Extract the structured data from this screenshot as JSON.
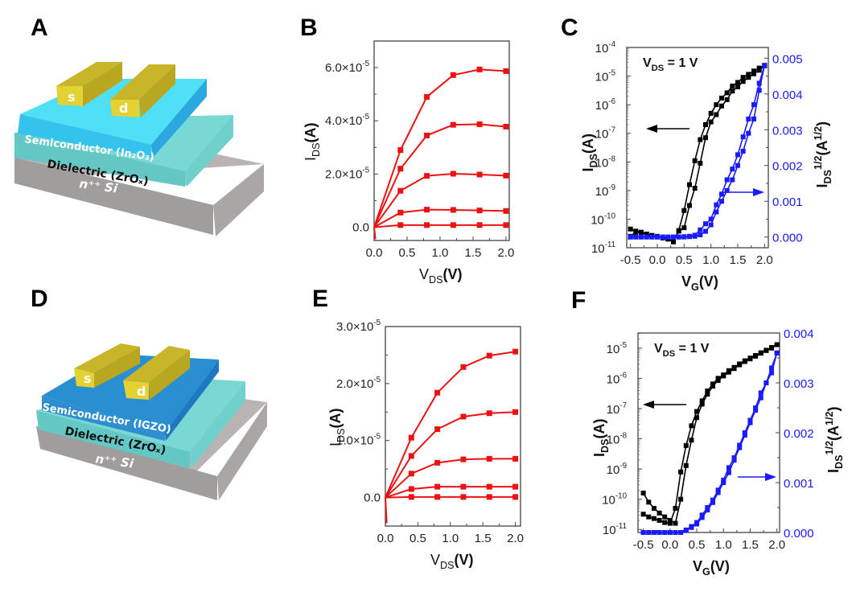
{
  "panels": {
    "A": "A",
    "B": "B",
    "C": "C",
    "D": "D",
    "E": "E",
    "F": "F"
  },
  "devices": [
    {
      "id": "A",
      "source": "s",
      "drain": "d",
      "semiconductor": "Semiconductor (In₂O₃)",
      "dielectric": "Dielectric (ZrOₓ)",
      "substrate": "n⁺⁺ Si",
      "colors": {
        "semiconductor_top": "#4fe0f7",
        "semiconductor_side": "#2aa8e0",
        "dielectric_top": "#7ad8d4",
        "dielectric_side": "#5cc1bf",
        "substrate_top": "#b9b4b3",
        "substrate_side": "#9a9695",
        "electrode_top": "#c9b52a",
        "electrode_side": "#e4d233"
      }
    },
    {
      "id": "D",
      "source": "s",
      "drain": "d",
      "semiconductor": "Semiconductor (IGZO)",
      "dielectric": "Dielectric (ZrOₓ)",
      "substrate": "n⁺⁺ Si",
      "colors": {
        "semiconductor_top": "#2a8fd0",
        "semiconductor_side": "#1f78c0",
        "dielectric_top": "#7ad8d4",
        "dielectric_side": "#5cc1bf",
        "substrate_top": "#b9b4b3",
        "substrate_side": "#9a9695",
        "electrode_top": "#c9b52a",
        "electrode_side": "#e4d233"
      }
    }
  ],
  "chart_data": [
    {
      "id": "B",
      "type": "line",
      "title": "",
      "xlabel": "V_DS(V)",
      "ylabel": "I_DS(A)",
      "xlim": [
        0,
        2.05
      ],
      "ylim": [
        -5e-06,
        7e-05
      ],
      "xticks": [
        0.0,
        0.5,
        1.0,
        1.5,
        2.0
      ],
      "xtick_labels": [
        "0.0",
        "0.5",
        "1.0",
        "1.5",
        "2.0"
      ],
      "yticks": [
        0,
        2e-05,
        4e-05,
        6e-05
      ],
      "ytick_labels": [
        "0.0",
        "2.0×10⁻⁵",
        "4.0×10⁻⁵",
        "6.0×10⁻⁵"
      ],
      "color": "#ee1111",
      "x": [
        0.0,
        0.4,
        0.8,
        1.2,
        1.6,
        2.0
      ],
      "series": [
        {
          "name": "curve-1",
          "values": [
            0,
            2.9e-05,
            4.9e-05,
            5.72e-05,
            5.93e-05,
            5.87e-05
          ]
        },
        {
          "name": "curve-2",
          "values": [
            0,
            2.2e-05,
            3.45e-05,
            3.85e-05,
            3.87e-05,
            3.78e-05
          ]
        },
        {
          "name": "curve-3",
          "values": [
            0,
            1.37e-05,
            1.93e-05,
            2.01e-05,
            1.98e-05,
            1.94e-05
          ]
        },
        {
          "name": "curve-4",
          "values": [
            0,
            5.5e-06,
            6.6e-06,
            6.5e-06,
            6.3e-06,
            6.1e-06
          ]
        },
        {
          "name": "curve-5",
          "values": [
            0,
            8e-07,
            8e-07,
            8e-07,
            8e-07,
            8e-07
          ]
        }
      ]
    },
    {
      "id": "C",
      "type": "line",
      "title": "",
      "annotation": "V_DS = 1 V",
      "xlabel": "V_G(V)",
      "ylabel_left": "I_DS(A)",
      "ylabel_right": "I_DS^1/2(A^1/2)",
      "xlim": [
        -0.57,
        2.07
      ],
      "ylim_left_log10": [
        -11,
        -4
      ],
      "ylim_right": [
        -0.0003,
        0.0053
      ],
      "xticks": [
        -0.5,
        0.0,
        0.5,
        1.0,
        1.5,
        2.0
      ],
      "xtick_labels": [
        "-0.5",
        "0.0",
        "0.5",
        "1.0",
        "1.5",
        "2.0"
      ],
      "yticks_left_exp": [
        -11,
        -10,
        -9,
        -8,
        -7,
        -6,
        -5,
        -4
      ],
      "yticks_right": [
        0.0,
        0.001,
        0.002,
        0.003,
        0.004,
        0.005
      ],
      "ytick_labels_right": [
        "0.000",
        "0.001",
        "0.002",
        "0.003",
        "0.004",
        "0.005"
      ],
      "left_color": "#000000",
      "right_color": "#1a1aff",
      "x": [
        -0.5,
        -0.4,
        -0.3,
        -0.2,
        -0.1,
        0.0,
        0.1,
        0.2,
        0.3,
        0.4,
        0.5,
        0.6,
        0.7,
        0.8,
        0.9,
        1.0,
        1.1,
        1.2,
        1.3,
        1.4,
        1.5,
        1.6,
        1.7,
        1.8,
        1.9,
        2.0
      ],
      "series": [
        {
          "name": "log-forward",
          "axis": "left",
          "values": [
            2.5e-11,
            3.5e-11,
            3.3e-11,
            3e-11,
            2.6e-11,
            2.4e-11,
            2.2e-11,
            2e-11,
            1.6e-11,
            4e-11,
            2e-10,
            1.6e-09,
            1.1e-08,
            6e-08,
            2e-07,
            5e-07,
            1e-06,
            1.7e-06,
            2.6e-06,
            4.5e-06,
            6e-06,
            9e-06,
            1.15e-05,
            1.5e-05,
            1.9e-05,
            2.3e-05
          ]
        },
        {
          "name": "log-reverse",
          "axis": "left",
          "values": [
            4.5e-11,
            3.8e-11,
            3.5e-11,
            3e-11,
            2.7e-11,
            2.5e-11,
            2.3e-11,
            2.1e-11,
            1.7e-11,
            3.8e-11,
            5e-11,
            3e-10,
            1.2e-09,
            9e-09,
            7e-08,
            2.5e-07,
            4.5e-07,
            9e-07,
            1.5e-06,
            3e-06,
            4.2e-06,
            6.5e-06,
            9e-06,
            1.2e-05,
            1.6e-05,
            2.3e-05
          ]
        },
        {
          "name": "sqrt-forward",
          "axis": "right",
          "values": [
            0,
            0,
            0,
            0,
            0,
            0,
            0,
            0,
            0,
            0,
            1e-05,
            2e-05,
            5e-05,
            0.0002,
            0.00037,
            0.0005,
            0.0009,
            0.0012,
            0.0016,
            0.0019,
            0.0023,
            0.0028,
            0.0033,
            0.0037,
            0.0043,
            0.0048
          ]
        },
        {
          "name": "sqrt-reverse",
          "axis": "right",
          "values": [
            0,
            0,
            0,
            0,
            0,
            0,
            0,
            0,
            0,
            0,
            0,
            1e-05,
            2e-05,
            6e-05,
            0.00016,
            0.00034,
            0.0007,
            0.001,
            0.0013,
            0.0016,
            0.002,
            0.0024,
            0.0029,
            0.0033,
            0.0041,
            0.0048
          ]
        }
      ]
    },
    {
      "id": "E",
      "type": "line",
      "title": "",
      "xlabel": "V_DS(V)",
      "ylabel": "I_DS(A)",
      "xlim": [
        0,
        2.08
      ],
      "ylim": [
        -5e-06,
        3e-05
      ],
      "xticks": [
        0.0,
        0.5,
        1.0,
        1.5,
        2.0
      ],
      "xtick_labels": [
        "0.0",
        "0.5",
        "1.0",
        "1.5",
        "2.0"
      ],
      "yticks": [
        0,
        1e-05,
        2e-05,
        3e-05
      ],
      "ytick_labels": [
        "0.0",
        "1.0×10⁻⁵",
        "2.0×10⁻⁵",
        "3.0×10⁻⁵"
      ],
      "color": "#ee1111",
      "x": [
        0.0,
        0.4,
        0.8,
        1.2,
        1.6,
        2.0
      ],
      "series": [
        {
          "name": "curve-1",
          "values": [
            0,
            1.05e-05,
            1.84e-05,
            2.29e-05,
            2.49e-05,
            2.56e-05
          ]
        },
        {
          "name": "curve-2",
          "values": [
            0,
            7.3e-06,
            1.2e-05,
            1.42e-05,
            1.48e-05,
            1.5e-05
          ]
        },
        {
          "name": "curve-3",
          "values": [
            0,
            4.2e-06,
            6.1e-06,
            6.7e-06,
            6.8e-06,
            6.8e-06
          ]
        },
        {
          "name": "curve-4",
          "values": [
            0,
            1.5e-06,
            1.9e-06,
            1.9e-06,
            1.9e-06,
            1.9e-06
          ]
        },
        {
          "name": "curve-5",
          "values": [
            0,
            1e-07,
            1e-07,
            1e-07,
            1e-07,
            1e-07
          ]
        }
      ]
    },
    {
      "id": "F",
      "type": "line",
      "title": "",
      "annotation": "V_DS = 1 V",
      "xlabel": "V_G(V)",
      "ylabel_left": "I_DS(A)",
      "ylabel_right": "I_DS^1/2(A^1/2)",
      "xlim": [
        -0.6,
        2.05
      ],
      "ylim_left_log10": [
        -11.1,
        -4.5
      ],
      "ylim_right": [
        0.0,
        0.004
      ],
      "xticks": [
        -0.5,
        0.0,
        0.5,
        1.0,
        1.5,
        2.0
      ],
      "xtick_labels": [
        "-0.5",
        "0.0",
        "0.5",
        "1.0",
        "1.5",
        "2.0"
      ],
      "yticks_left_exp": [
        -11,
        -10,
        -9,
        -8,
        -7,
        -6,
        -5
      ],
      "yticks_right": [
        0.0,
        0.001,
        0.002,
        0.003,
        0.004
      ],
      "ytick_labels_right": [
        "0.000",
        "0.001",
        "0.002",
        "0.003",
        "0.004"
      ],
      "left_color": "#000000",
      "right_color": "#1a1aff",
      "x": [
        -0.5,
        -0.4,
        -0.3,
        -0.2,
        -0.1,
        0.0,
        0.1,
        0.2,
        0.3,
        0.4,
        0.5,
        0.6,
        0.7,
        0.8,
        0.9,
        1.0,
        1.1,
        1.2,
        1.3,
        1.4,
        1.5,
        1.6,
        1.7,
        1.8,
        1.9,
        2.0
      ],
      "series": [
        {
          "name": "log-forward",
          "axis": "left",
          "values": [
            3.2e-11,
            2.6e-11,
            2.3e-11,
            2e-11,
            1.7e-11,
            1.6e-11,
            5e-11,
            8e-10,
            6e-09,
            2.7e-08,
            8e-08,
            1.8e-07,
            3.8e-07,
            6.5e-07,
            1e-06,
            1.3e-06,
            1.8e-06,
            2.3e-06,
            3e-06,
            3.8e-06,
            4.7e-06,
            5.7e-06,
            7e-06,
            8.5e-06,
            1.05e-05,
            1.3e-05
          ]
        },
        {
          "name": "log-reverse",
          "axis": "left",
          "values": [
            1.6e-10,
            8e-11,
            5e-11,
            3.5e-11,
            2.6e-11,
            2e-11,
            1.6e-11,
            1e-10,
            1.3e-09,
            9e-09,
            5e-08,
            1.4e-07,
            3e-07,
            5.5e-07,
            8.5e-07,
            1.2e-06,
            1.6e-06,
            2.1e-06,
            2.8e-06,
            3.6e-06,
            4.4e-06,
            5.4e-06,
            6.8e-06,
            8.3e-06,
            1e-05,
            1.3e-05
          ]
        },
        {
          "name": "sqrt-forward",
          "axis": "right",
          "values": [
            0,
            0,
            0,
            0,
            0,
            0,
            0,
            0,
            5e-05,
            0.00012,
            0.0002,
            0.00035,
            0.0005,
            0.00065,
            0.00085,
            0.00105,
            0.0013,
            0.0015,
            0.00175,
            0.002,
            0.00225,
            0.0025,
            0.0028,
            0.003,
            0.0033,
            0.0036
          ]
        },
        {
          "name": "sqrt-reverse",
          "axis": "right",
          "values": [
            0,
            0,
            0,
            0,
            0,
            0,
            0,
            0,
            4e-05,
            0.0001,
            0.00017,
            0.0003,
            0.00045,
            0.0006,
            0.0008,
            0.001,
            0.0012,
            0.00145,
            0.0017,
            0.00195,
            0.0022,
            0.00245,
            0.0027,
            0.003,
            0.0032,
            0.0036
          ]
        }
      ]
    }
  ]
}
